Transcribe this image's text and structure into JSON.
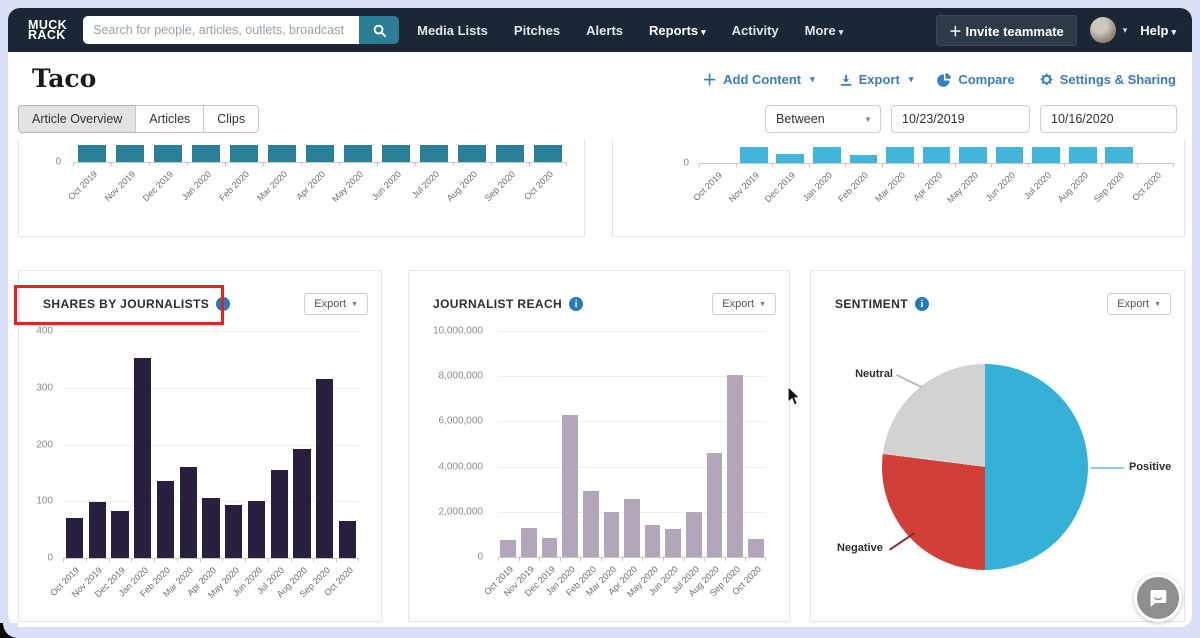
{
  "navbar": {
    "logo": {
      "line1": "MUCK",
      "line2": "RACK"
    },
    "search": {
      "placeholder": "Search for people, articles, outlets, broadcast"
    },
    "items": [
      {
        "label": "Media Lists"
      },
      {
        "label": "Pitches"
      },
      {
        "label": "Alerts"
      },
      {
        "label": "Reports",
        "active": true,
        "caret": true
      },
      {
        "label": "Activity"
      },
      {
        "label": "More",
        "caret": true
      }
    ],
    "invite_button": {
      "label": "Invite teammate"
    },
    "help": {
      "label": "Help"
    }
  },
  "header": {
    "title": "Taco",
    "accent_color": "#3a7dbf",
    "actions": [
      {
        "label": "Add Content",
        "icon": "plus-icon",
        "caret": "▾"
      },
      {
        "label": "Export",
        "icon": "download-icon",
        "caret": "▾"
      },
      {
        "label": "Compare",
        "icon": "compare-pie-icon"
      },
      {
        "label": "Settings & Sharing",
        "icon": "gear-icon"
      }
    ]
  },
  "tabs": [
    {
      "label": "Article Overview",
      "active": true
    },
    {
      "label": "Articles"
    },
    {
      "label": "Clips"
    }
  ],
  "filters": {
    "operator": "Between",
    "start_date": "10/23/2019",
    "end_date": "10/16/2020"
  },
  "cards": {
    "shares": {
      "title": "SHARES BY JOURNALISTS",
      "export_label": "Export"
    },
    "reach": {
      "title": "JOURNALIST REACH",
      "export_label": "Export"
    },
    "sentiment": {
      "title": "SENTIMENT",
      "export_label": "Export"
    }
  },
  "chart_data": [
    {
      "id": "top-left-cropped",
      "type": "bar",
      "color": "#2a7f99",
      "unit": "px",
      "categories": [
        "Oct 2019",
        "Nov 2019",
        "Dec 2019",
        "Jan 2020",
        "Feb 2020",
        "Mar 2020",
        "Apr 2020",
        "May 2020",
        "Jun 2020",
        "Jul 2020",
        "Aug 2020",
        "Sep 2020",
        "Oct 2020"
      ],
      "values": [
        17,
        17,
        17,
        17,
        17,
        17,
        17,
        17,
        17,
        17,
        17,
        17,
        17
      ],
      "ytick_labels": [
        "0"
      ]
    },
    {
      "id": "top-right-cropped",
      "type": "bar",
      "color": "#41b5da",
      "unit": "px",
      "categories": [
        "Oct 2019",
        "Nov 2019",
        "Dec 2019",
        "Jan 2020",
        "Feb 2020",
        "Mar 2020",
        "Apr 2020",
        "May 2020",
        "Jun 2020",
        "Jul 2020",
        "Aug 2020",
        "Sep 2020",
        "Oct 2020"
      ],
      "values": [
        0,
        16,
        9,
        16,
        8,
        16,
        16,
        16,
        16,
        16,
        16,
        16,
        0
      ],
      "ytick_labels": [
        "0"
      ]
    },
    {
      "id": "shares-by-journalists",
      "type": "bar",
      "color": "#281f3f",
      "title": "SHARES BY JOURNALISTS",
      "ylim": [
        0,
        400
      ],
      "categories": [
        "Oct 2019",
        "Nov 2019",
        "Dec 2019",
        "Jan 2020",
        "Feb 2020",
        "Mar 2020",
        "Apr 2020",
        "May 2020",
        "Jun 2020",
        "Jul 2020",
        "Aug 2020",
        "Sep 2020",
        "Oct 2020"
      ],
      "values": [
        70,
        98,
        82,
        352,
        135,
        160,
        105,
        93,
        100,
        155,
        192,
        315,
        65
      ],
      "ytick_labels": [
        "0",
        "100",
        "200",
        "300",
        "400"
      ]
    },
    {
      "id": "journalist-reach",
      "type": "bar",
      "color": "#b3a6ba",
      "title": "JOURNALIST REACH",
      "ylim": [
        0,
        10000000
      ],
      "categories": [
        "Oct 2019",
        "Nov 2019",
        "Dec 2019",
        "Jan 2020",
        "Feb 2020",
        "Mar 2020",
        "Apr 2020",
        "May 2020",
        "Jun 2020",
        "Jul 2020",
        "Aug 2020",
        "Sep 2020",
        "Oct 2020"
      ],
      "values": [
        750000,
        1300000,
        850000,
        6300000,
        2900000,
        2000000,
        2550000,
        1400000,
        1250000,
        2000000,
        4600000,
        8050000,
        800000
      ],
      "ytick_labels": [
        "0",
        "2,000,000",
        "4,000,000",
        "6,000,000",
        "8,000,000",
        "10,000,000"
      ]
    },
    {
      "id": "sentiment",
      "type": "pie",
      "title": "SENTIMENT",
      "slices": [
        {
          "label": "Positive",
          "pct": 50,
          "color": "#35b1d8"
        },
        {
          "label": "Negative",
          "pct": 27,
          "color": "#d23f38"
        },
        {
          "label": "Neutral",
          "pct": 23,
          "color": "#d2d2d2"
        }
      ]
    }
  ]
}
